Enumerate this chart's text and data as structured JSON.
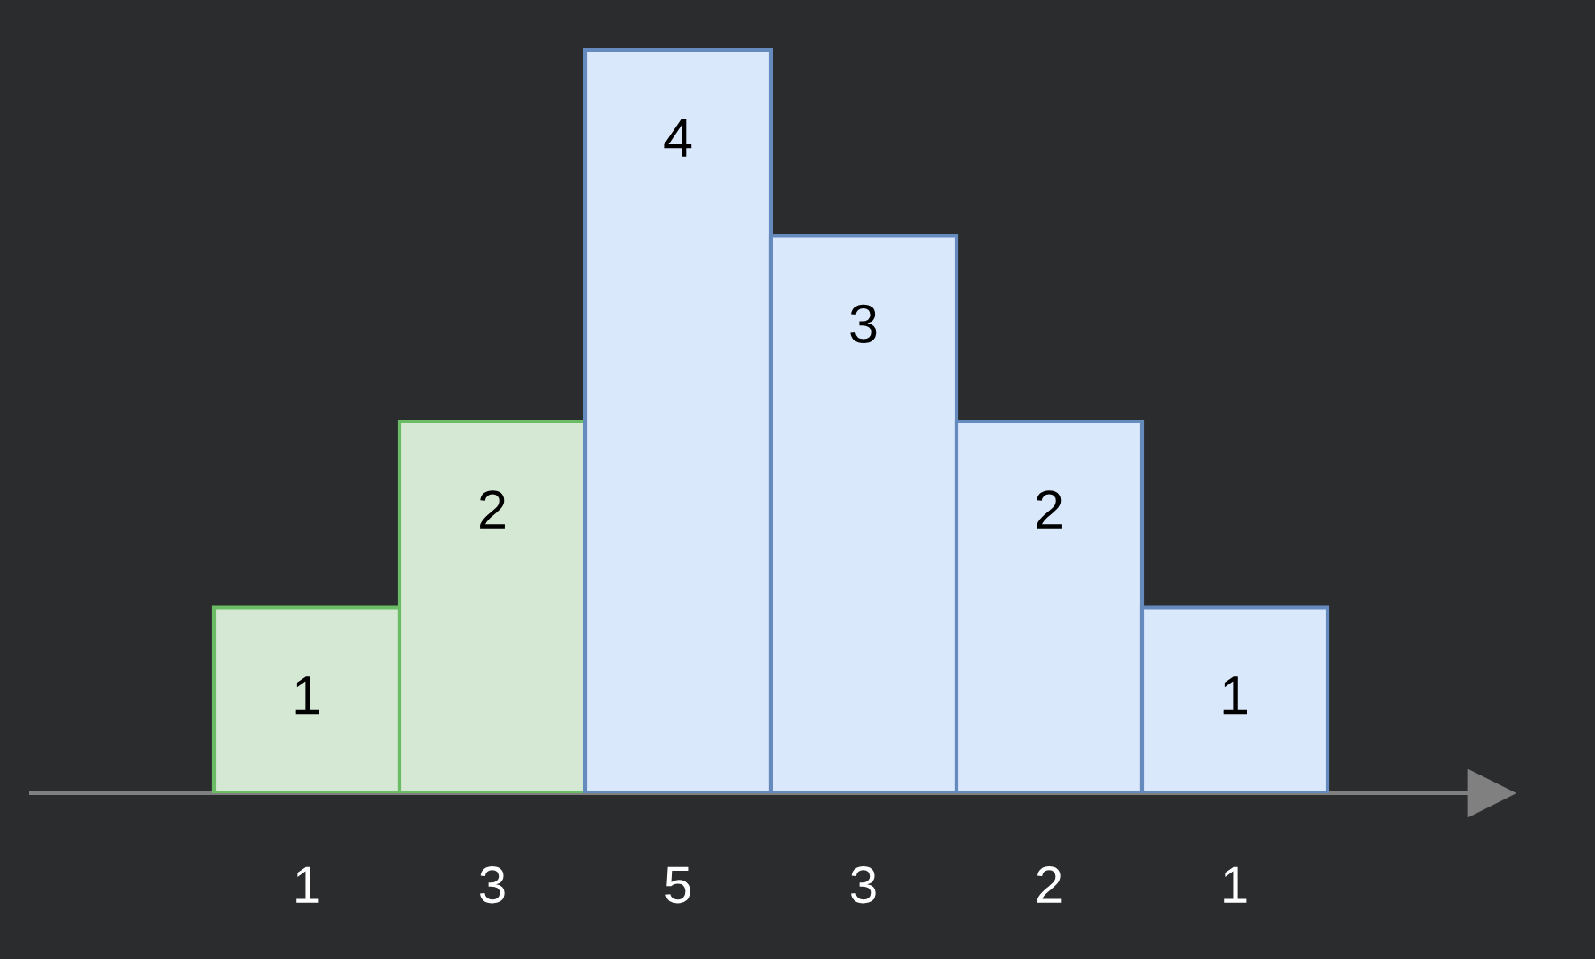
{
  "chart_data": {
    "type": "bar",
    "categories": [
      "1",
      "3",
      "5",
      "3",
      "2",
      "1"
    ],
    "values": [
      1,
      2,
      4,
      3,
      2,
      1
    ],
    "colors": [
      "#d5e8d4",
      "#d5e8d4",
      "#dae8fc",
      "#dae8fc",
      "#dae8fc",
      "#dae8fc"
    ],
    "data_labels": true
  }
}
